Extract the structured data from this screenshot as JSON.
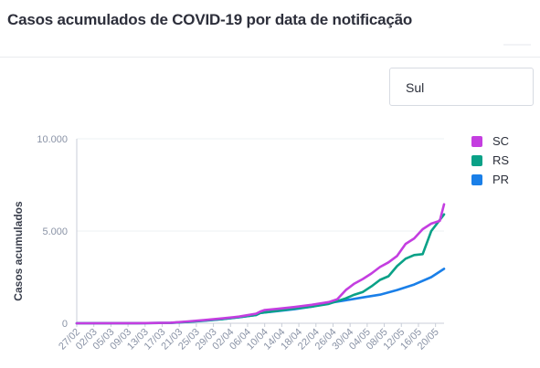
{
  "title": "Casos acumulados de COVID-19 por data de notificação",
  "region_select": {
    "value": "Sul"
  },
  "chart_data": {
    "type": "line",
    "ylabel": "Casos acumulados",
    "xlabel": "",
    "ylim": [
      0,
      10000
    ],
    "yticks": [
      0,
      5000,
      10000
    ],
    "ytick_labels": [
      "0",
      "5.000",
      "10.000"
    ],
    "x_start": "2020-02-27",
    "x_end": "2020-05-23",
    "xtick_labels": [
      "27/02",
      "02/03",
      "05/03",
      "09/03",
      "13/03",
      "17/03",
      "21/03",
      "25/03",
      "29/03",
      "02/04",
      "06/04",
      "10/04",
      "14/04",
      "18/04",
      "22/04",
      "26/04",
      "30/04",
      "04/05",
      "08/05",
      "12/05",
      "16/05",
      "20/05"
    ],
    "legend_position": "right",
    "series": [
      {
        "name": "SC",
        "color": "#c43ee0",
        "points": [
          [
            "2020-02-27",
            0
          ],
          [
            "2020-03-12",
            5
          ],
          [
            "2020-03-20",
            30
          ],
          [
            "2020-03-24",
            100
          ],
          [
            "2020-03-28",
            180
          ],
          [
            "2020-04-01",
            260
          ],
          [
            "2020-04-05",
            360
          ],
          [
            "2020-04-09",
            520
          ],
          [
            "2020-04-10",
            640
          ],
          [
            "2020-04-11",
            720
          ],
          [
            "2020-04-14",
            780
          ],
          [
            "2020-04-18",
            880
          ],
          [
            "2020-04-22",
            1000
          ],
          [
            "2020-04-26",
            1150
          ],
          [
            "2020-04-28",
            1300
          ],
          [
            "2020-04-30",
            1800
          ],
          [
            "2020-05-02",
            2150
          ],
          [
            "2020-05-04",
            2400
          ],
          [
            "2020-05-06",
            2700
          ],
          [
            "2020-05-08",
            3050
          ],
          [
            "2020-05-10",
            3300
          ],
          [
            "2020-05-12",
            3650
          ],
          [
            "2020-05-14",
            4300
          ],
          [
            "2020-05-16",
            4600
          ],
          [
            "2020-05-18",
            5100
          ],
          [
            "2020-05-20",
            5400
          ],
          [
            "2020-05-22",
            5550
          ],
          [
            "2020-05-23",
            6450
          ]
        ]
      },
      {
        "name": "RS",
        "color": "#0aa187",
        "points": [
          [
            "2020-02-27",
            0
          ],
          [
            "2020-03-12",
            5
          ],
          [
            "2020-03-20",
            20
          ],
          [
            "2020-03-24",
            80
          ],
          [
            "2020-03-28",
            150
          ],
          [
            "2020-04-01",
            230
          ],
          [
            "2020-04-05",
            330
          ],
          [
            "2020-04-09",
            450
          ],
          [
            "2020-04-10",
            560
          ],
          [
            "2020-04-14",
            680
          ],
          [
            "2020-04-18",
            790
          ],
          [
            "2020-04-22",
            900
          ],
          [
            "2020-04-26",
            1050
          ],
          [
            "2020-04-30",
            1350
          ],
          [
            "2020-05-02",
            1550
          ],
          [
            "2020-05-04",
            1700
          ],
          [
            "2020-05-06",
            2000
          ],
          [
            "2020-05-08",
            2350
          ],
          [
            "2020-05-10",
            2550
          ],
          [
            "2020-05-12",
            3100
          ],
          [
            "2020-05-14",
            3500
          ],
          [
            "2020-05-16",
            3700
          ],
          [
            "2020-05-18",
            3750
          ],
          [
            "2020-05-20",
            5000
          ],
          [
            "2020-05-22",
            5600
          ],
          [
            "2020-05-23",
            5900
          ]
        ]
      },
      {
        "name": "PR",
        "color": "#1a7fe8",
        "points": [
          [
            "2020-02-27",
            0
          ],
          [
            "2020-03-12",
            5
          ],
          [
            "2020-03-20",
            20
          ],
          [
            "2020-03-24",
            70
          ],
          [
            "2020-03-28",
            140
          ],
          [
            "2020-04-01",
            220
          ],
          [
            "2020-04-05",
            320
          ],
          [
            "2020-04-09",
            450
          ],
          [
            "2020-04-10",
            560
          ],
          [
            "2020-04-14",
            660
          ],
          [
            "2020-04-18",
            760
          ],
          [
            "2020-04-22",
            900
          ],
          [
            "2020-04-26",
            1100
          ],
          [
            "2020-04-30",
            1250
          ],
          [
            "2020-05-04",
            1400
          ],
          [
            "2020-05-08",
            1550
          ],
          [
            "2020-05-12",
            1800
          ],
          [
            "2020-05-16",
            2100
          ],
          [
            "2020-05-20",
            2500
          ],
          [
            "2020-05-23",
            2950
          ]
        ]
      }
    ]
  }
}
